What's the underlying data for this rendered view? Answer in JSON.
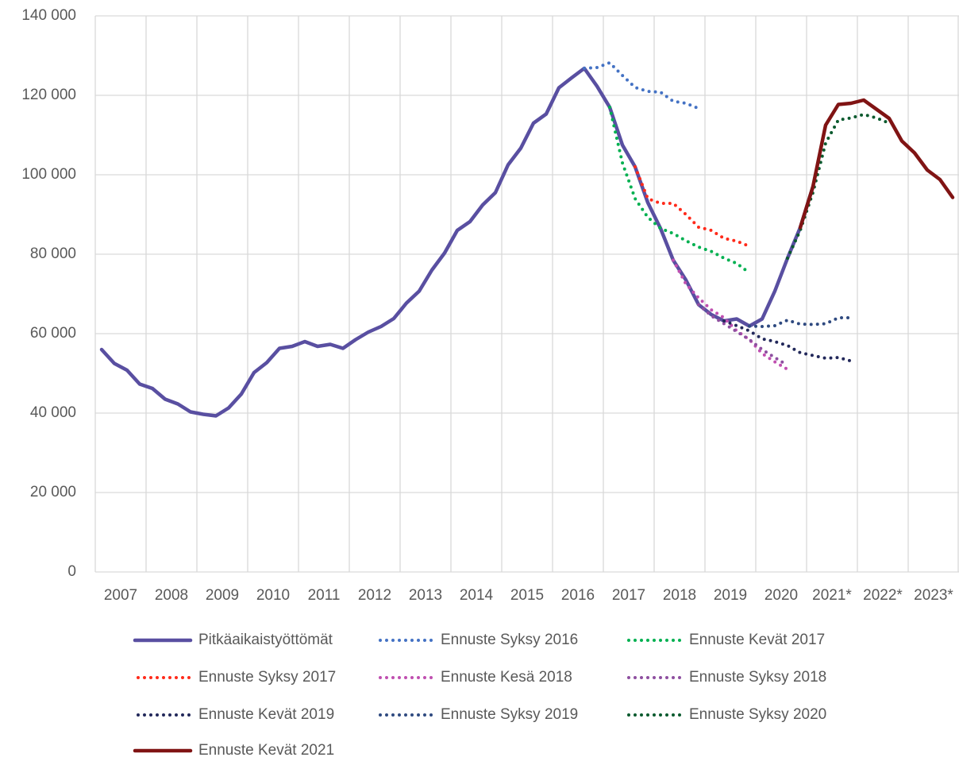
{
  "chart_data": {
    "type": "line",
    "categories": [
      "2007",
      null,
      null,
      null,
      "2008",
      null,
      null,
      null,
      "2009",
      null,
      null,
      null,
      "2010",
      null,
      null,
      null,
      "2011",
      null,
      null,
      null,
      "2012",
      null,
      null,
      null,
      "2013",
      null,
      null,
      null,
      "2014",
      null,
      null,
      null,
      "2015",
      null,
      null,
      null,
      "2016",
      null,
      null,
      null,
      "2017",
      null,
      null,
      null,
      "2018",
      null,
      null,
      null,
      "2019",
      null,
      null,
      null,
      "2020",
      null,
      null,
      null,
      "2021*",
      null,
      null,
      null,
      "2022*",
      null,
      null,
      null,
      "2023*",
      null,
      null,
      null
    ],
    "ylim": [
      0,
      140000
    ],
    "yticks": [
      0,
      {
        "value": 20000,
        "label": "20 000"
      },
      {
        "value": 40000,
        "label": "40 000"
      },
      {
        "value": 60000,
        "label": "60 000"
      },
      {
        "value": 80000,
        "label": "80 000"
      },
      {
        "value": 100000,
        "label": "100 000"
      },
      {
        "value": 120000,
        "label": "120 000"
      },
      {
        "value": 140000,
        "label": "140 000"
      }
    ],
    "grid": true,
    "series": [
      {
        "name": "Pitkäaikaistyöttömät",
        "color": "#594fa1",
        "style": "solid",
        "values": [
          56000,
          52500,
          50800,
          47300,
          46200,
          43500,
          42300,
          40300,
          39700,
          39300,
          41300,
          44800,
          50200,
          52700,
          56300,
          56800,
          58000,
          56800,
          57300,
          56300,
          58500,
          60400,
          61800,
          63800,
          67700,
          70700,
          76000,
          80300,
          86000,
          88200,
          92400,
          95500,
          102500,
          106700,
          113000,
          115300,
          121900,
          124400,
          126800,
          122300,
          117000,
          107500,
          102000,
          93000,
          86500,
          78500,
          73500,
          67300,
          64800,
          63200,
          63700,
          61900,
          63700,
          70700,
          79000,
          86700,
          97000,
          null,
          null,
          null,
          null,
          null,
          null,
          null,
          null,
          null,
          null,
          null
        ]
      },
      {
        "name": "Ennuste Syksy 2016",
        "color": "#4472c4",
        "style": "dotted",
        "values": [
          null,
          null,
          null,
          null,
          null,
          null,
          null,
          null,
          null,
          null,
          null,
          null,
          null,
          null,
          null,
          null,
          null,
          null,
          null,
          null,
          null,
          null,
          null,
          null,
          null,
          null,
          null,
          null,
          null,
          null,
          null,
          null,
          null,
          null,
          null,
          null,
          null,
          null,
          126800,
          127000,
          128200,
          125000,
          122000,
          121000,
          120800,
          118500,
          118000,
          116700,
          null,
          null,
          null,
          null,
          null,
          null,
          null,
          null,
          null,
          null,
          null,
          null,
          null,
          null,
          null,
          null,
          null,
          null,
          null,
          null
        ]
      },
      {
        "name": "Ennuste Kevät 2017",
        "color": "#00b050",
        "style": "dotted",
        "values": [
          null,
          null,
          null,
          null,
          null,
          null,
          null,
          null,
          null,
          null,
          null,
          null,
          null,
          null,
          null,
          null,
          null,
          null,
          null,
          null,
          null,
          null,
          null,
          null,
          null,
          null,
          null,
          null,
          null,
          null,
          null,
          null,
          null,
          null,
          null,
          null,
          null,
          null,
          null,
          null,
          117000,
          103000,
          94000,
          89300,
          86500,
          85200,
          83400,
          81800,
          80700,
          79000,
          77700,
          75300,
          null,
          null,
          null,
          null,
          null,
          null,
          null,
          null,
          null,
          null,
          null,
          null,
          null,
          null,
          null,
          null
        ]
      },
      {
        "name": "Ennuste Syksy 2017",
        "color": "#ff2a1a",
        "style": "dotted",
        "values": [
          null,
          null,
          null,
          null,
          null,
          null,
          null,
          null,
          null,
          null,
          null,
          null,
          null,
          null,
          null,
          null,
          null,
          null,
          null,
          null,
          null,
          null,
          null,
          null,
          null,
          null,
          null,
          null,
          null,
          null,
          null,
          null,
          null,
          null,
          null,
          null,
          null,
          null,
          null,
          null,
          null,
          null,
          102000,
          94000,
          92800,
          92800,
          90000,
          86800,
          86000,
          84000,
          83300,
          82000,
          null,
          null,
          null,
          null,
          null,
          null,
          null,
          null,
          null,
          null,
          null,
          null,
          null,
          null,
          null,
          null
        ]
      },
      {
        "name": "Ennuste Kesä 2018",
        "color": "#c04fb0",
        "style": "dotted",
        "values": [
          null,
          null,
          null,
          null,
          null,
          null,
          null,
          null,
          null,
          null,
          null,
          null,
          null,
          null,
          null,
          null,
          null,
          null,
          null,
          null,
          null,
          null,
          null,
          null,
          null,
          null,
          null,
          null,
          null,
          null,
          null,
          null,
          null,
          null,
          null,
          null,
          null,
          null,
          null,
          null,
          null,
          null,
          null,
          null,
          null,
          78500,
          72500,
          69000,
          66000,
          64000,
          60700,
          58500,
          55000,
          52900,
          51000,
          null,
          null,
          null,
          null,
          null,
          null,
          null,
          null,
          null,
          null,
          null,
          null,
          null
        ]
      },
      {
        "name": "Ennuste Syksy 2018",
        "color": "#8e4fa0",
        "style": "dotted",
        "values": [
          null,
          null,
          null,
          null,
          null,
          null,
          null,
          null,
          null,
          null,
          null,
          null,
          null,
          null,
          null,
          null,
          null,
          null,
          null,
          null,
          null,
          null,
          null,
          null,
          null,
          null,
          null,
          null,
          null,
          null,
          null,
          null,
          null,
          null,
          null,
          null,
          null,
          null,
          null,
          null,
          null,
          null,
          null,
          null,
          null,
          null,
          null,
          67300,
          64500,
          62500,
          60500,
          58500,
          56000,
          54000,
          52000,
          null,
          null,
          null,
          null,
          null,
          null,
          null,
          null,
          null,
          null,
          null,
          null,
          null
        ]
      },
      {
        "name": "Ennuste Kevät 2019",
        "color": "#22285a",
        "style": "dotted",
        "values": [
          null,
          null,
          null,
          null,
          null,
          null,
          null,
          null,
          null,
          null,
          null,
          null,
          null,
          null,
          null,
          null,
          null,
          null,
          null,
          null,
          null,
          null,
          null,
          null,
          null,
          null,
          null,
          null,
          null,
          null,
          null,
          null,
          null,
          null,
          null,
          null,
          null,
          null,
          null,
          null,
          null,
          null,
          null,
          null,
          null,
          null,
          null,
          null,
          null,
          63200,
          62000,
          60700,
          58700,
          58000,
          57000,
          55200,
          54500,
          53800,
          54000,
          53100,
          null,
          null,
          null,
          null,
          null,
          null,
          null,
          null
        ]
      },
      {
        "name": "Ennuste Syksy 2019",
        "color": "#2f4a80",
        "style": "dotted",
        "values": [
          null,
          null,
          null,
          null,
          null,
          null,
          null,
          null,
          null,
          null,
          null,
          null,
          null,
          null,
          null,
          null,
          null,
          null,
          null,
          null,
          null,
          null,
          null,
          null,
          null,
          null,
          null,
          null,
          null,
          null,
          null,
          null,
          null,
          null,
          null,
          null,
          null,
          null,
          null,
          null,
          null,
          null,
          null,
          null,
          null,
          null,
          null,
          null,
          null,
          null,
          null,
          61900,
          61800,
          62000,
          63400,
          62400,
          62300,
          62500,
          64000,
          64000,
          null,
          null,
          null,
          null,
          null,
          null,
          null,
          null
        ]
      },
      {
        "name": "Ennuste Syksy 2020",
        "color": "#0a5a2e",
        "style": "dotted",
        "values": [
          null,
          null,
          null,
          null,
          null,
          null,
          null,
          null,
          null,
          null,
          null,
          null,
          null,
          null,
          null,
          null,
          null,
          null,
          null,
          null,
          null,
          null,
          null,
          null,
          null,
          null,
          null,
          null,
          null,
          null,
          null,
          null,
          null,
          null,
          null,
          null,
          null,
          null,
          null,
          null,
          null,
          null,
          null,
          null,
          null,
          null,
          null,
          null,
          null,
          null,
          null,
          null,
          null,
          null,
          79000,
          86000,
          95500,
          108000,
          113800,
          114300,
          115200,
          114300,
          113000,
          null,
          null,
          null,
          null,
          null
        ]
      },
      {
        "name": "Ennuste Kevät 2021",
        "color": "#801414",
        "style": "solid",
        "values": [
          null,
          null,
          null,
          null,
          null,
          null,
          null,
          null,
          null,
          null,
          null,
          null,
          null,
          null,
          null,
          null,
          null,
          null,
          null,
          null,
          null,
          null,
          null,
          null,
          null,
          null,
          null,
          null,
          null,
          null,
          null,
          null,
          null,
          null,
          null,
          null,
          null,
          null,
          null,
          null,
          null,
          null,
          null,
          null,
          null,
          null,
          null,
          null,
          null,
          null,
          null,
          null,
          null,
          null,
          null,
          86700,
          97000,
          112500,
          117700,
          118000,
          118800,
          116500,
          114200,
          108500,
          105500,
          101200,
          98800,
          94300
        ]
      }
    ]
  }
}
